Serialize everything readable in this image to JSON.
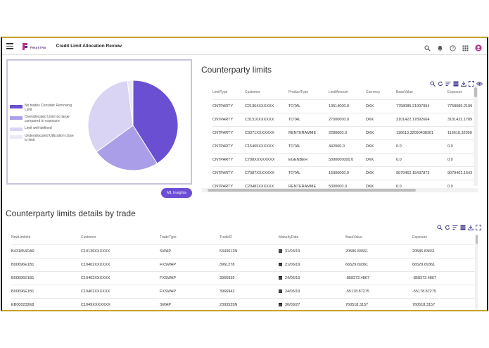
{
  "app": {
    "title": "Credit Limit Allocation Review",
    "logo_text": "FINASTRA"
  },
  "topbar": {
    "icons": [
      "search-icon",
      "bell-icon",
      "help-icon",
      "apps-grid-icon",
      "user-avatar-icon"
    ]
  },
  "pie_chart": {
    "legend": [
      {
        "label": "No trades Consider Removing Limit",
        "color": "#6a4fd3"
      },
      {
        "label": "Overallocated Limit too large compared to exposure",
        "color": "#ab9ee8"
      },
      {
        "label": "Limit well-defined",
        "color": "#d9d4f4"
      },
      {
        "label": "Underallocated Utilization close to limit",
        "color": "#ece9f6"
      }
    ]
  },
  "chart_data": {
    "type": "pie",
    "labels": [
      "No trades Consider Removing Limit",
      "Overallocated Limit too large compared to exposure",
      "Limit well-defined",
      "Underallocated Utilization close to limit"
    ],
    "values": [
      41,
      24,
      33,
      2
    ],
    "colors": [
      "#6a4fd3",
      "#ab9ee8",
      "#d9d4f4",
      "#ece9f6"
    ]
  },
  "ml_button": {
    "label": "ML Insights"
  },
  "counterparty_limits": {
    "title": "Counterparty limits",
    "columns": [
      "LimitType",
      "Customer",
      "ProductType",
      "LimitAmount",
      "Currency",
      "BaseValue",
      "Exposure"
    ],
    "rows": [
      [
        "CNTPARTY",
        "C21364XXXXXX",
        "TOTAL",
        "10514000.0",
        "DKK",
        "7758085.21997994",
        "7758085.2199"
      ],
      [
        "CNTPARTY",
        "C31310XXXXXX",
        "TOTAL",
        "27000000.0",
        "DKK",
        "3101422.17892664",
        "3101422.1789"
      ],
      [
        "CNTPARTY",
        "C9371XXXXXXX",
        "RENTERAMME",
        "2280000.0",
        "DKK",
        "116610.32090438301",
        "116610.32090"
      ],
      [
        "CNTPARTY",
        "C15405XXXXXX",
        "TOTAL",
        "442000.0",
        "DKK",
        "0.0",
        "0.0"
      ],
      [
        "CNTPARTY",
        "C798XXXXXXXX",
        "EGENBEH",
        "5000000000.0",
        "DKK",
        "0.0",
        "0.0"
      ],
      [
        "CNTPARTY",
        "C7087XXXXXXX",
        "TOTAL",
        "15000000.0",
        "DKK",
        "9079462.15437873",
        "9079462.1543"
      ],
      [
        "CNTPARTY",
        "C20482XXXXXX",
        "RENTERAMME",
        "5000000.0",
        "DKK",
        "0.0",
        "0.0"
      ]
    ]
  },
  "trade_details": {
    "title": "Counterparty limits details by trade",
    "columns": [
      "NewLimitsId",
      "Customer",
      "TradeType",
      "TradeID",
      "MaturityDate",
      "BaseValue",
      "Exposure"
    ],
    "rows": [
      [
        "B431854DA9",
        "C10136XXXXXX",
        "SWAP",
        "5343612N",
        "31/03/19",
        "20586.83661",
        "20586.83661"
      ],
      [
        "B00696E1B1",
        "C10402XXXXXX",
        "FXSWAP",
        "3961278",
        "21/06/19",
        "66529.69361",
        "66529.69361"
      ],
      [
        "B00696E1B1",
        "C10402XXXXXX",
        "FXSWAP",
        "3966939",
        "24/06/19",
        "-858372.4867",
        "-858372.4867"
      ],
      [
        "B00696E1B1",
        "C10402XXXXXX",
        "FXSWAP",
        "3966942",
        "24/06/19",
        "-55178.87275",
        "-55178.87275"
      ],
      [
        "EB000232E8",
        "C1049XXXXXXX",
        "SWAP",
        "2393535N",
        "30/09/27",
        "760518.3157",
        "760518.3157"
      ]
    ]
  }
}
